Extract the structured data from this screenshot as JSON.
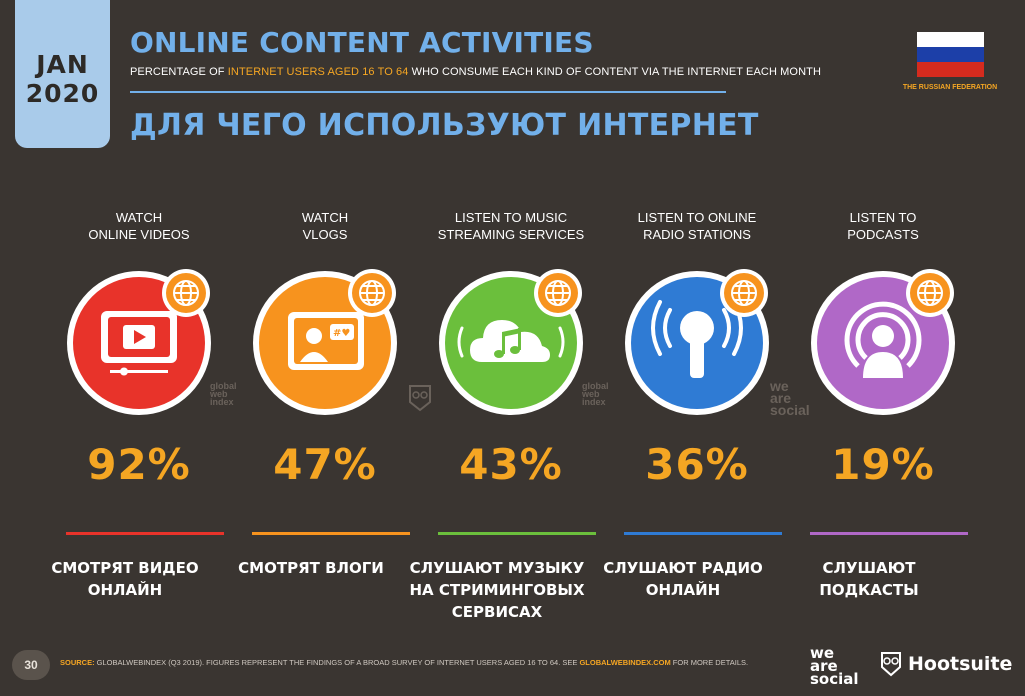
{
  "header": {
    "date_month": "JAN",
    "date_year": "2020",
    "title": "ONLINE CONTENT ACTIVITIES",
    "subtitle_pre": "PERCENTAGE OF ",
    "subtitle_highlight": "INTERNET USERS AGED 16 TO 64",
    "subtitle_post": " WHO CONSUME EACH KIND OF CONTENT VIA THE INTERNET EACH MONTH",
    "title_ru": "ДЛЯ ЧЕГО ИСПОЛЬЗУЮТ ИНТЕРНЕТ",
    "country": "THE RUSSIAN FEDERATION"
  },
  "colors": {
    "background": "#3a3531",
    "accent_blue": "#72b0ea",
    "accent_orange": "#f5a623"
  },
  "activities": [
    {
      "label_line1": "WATCH",
      "label_line2": "ONLINE VIDEOS",
      "value": "92%",
      "ru_line1": "СМОТРЯТ ВИДЕО",
      "ru_line2": "ОНЛАЙН",
      "ru_line3": "",
      "color": "#e8332a",
      "icon": "video-player-icon"
    },
    {
      "label_line1": "WATCH",
      "label_line2": "VLOGS",
      "value": "47%",
      "ru_line1": "СМОТРЯТ ВЛОГИ",
      "ru_line2": "",
      "ru_line3": "",
      "color": "#f7931e",
      "icon": "vlogger-icon"
    },
    {
      "label_line1": "LISTEN TO MUSIC",
      "label_line2": "STREAMING SERVICES",
      "value": "43%",
      "ru_line1": "СЛУШАЮТ МУЗЫКУ",
      "ru_line2": "НА СТРИМИНГОВЫХ",
      "ru_line3": "СЕРВИСАХ",
      "color": "#6bbf3c",
      "icon": "cloud-music-icon"
    },
    {
      "label_line1": "LISTEN TO ONLINE",
      "label_line2": "RADIO STATIONS",
      "value": "36%",
      "ru_line1": "СЛУШАЮТ РАДИО",
      "ru_line2": "ОНЛАЙН",
      "ru_line3": "",
      "color": "#2f7bd4",
      "icon": "radio-antenna-icon"
    },
    {
      "label_line1": "LISTEN TO",
      "label_line2": "PODCASTS",
      "value": "19%",
      "ru_line1": "СЛУШАЮТ",
      "ru_line2": "ПОДКАСТЫ",
      "ru_line3": "",
      "color": "#b068c7",
      "icon": "podcast-icon"
    }
  ],
  "watermarks": {
    "gwi_1": "global",
    "gwi_2": "web",
    "gwi_3": "index",
    "was_1": "we",
    "was_2": "are",
    "was_3": "social"
  },
  "footer": {
    "page_number": "30",
    "source_label": "SOURCE:",
    "source_text": " GLOBALWEBINDEX (Q3 2019). FIGURES REPRESENT THE FINDINGS OF A BROAD SURVEY OF INTERNET USERS AGED 16 TO 64. SEE ",
    "source_link": "GLOBALWEBINDEX.COM",
    "source_post": " FOR MORE DETAILS.",
    "brand_was_1": "we",
    "brand_was_2": "are",
    "brand_was_3": "social",
    "brand_hootsuite": "Hootsuite"
  }
}
